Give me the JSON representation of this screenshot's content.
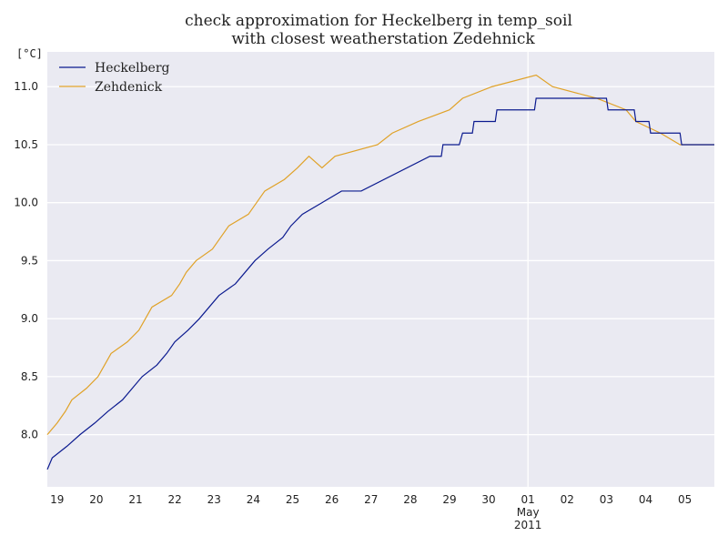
{
  "chart_data": {
    "type": "line",
    "title": [
      "check approximation for Heckelberg in temp_soil",
      "with closest weatherstation Zedehnick"
    ],
    "ylabel": "[°C]",
    "xlabel": "",
    "ylim": [
      7.55,
      11.3
    ],
    "xlim": [
      "2011-04-18 18:00",
      "2011-05-05 18:00"
    ],
    "yticks": [
      "8.0",
      "8.5",
      "9.0",
      "9.5",
      "10.0",
      "10.5",
      "11.0"
    ],
    "xticks": [
      {
        "label": "19",
        "date": "2011-04-19"
      },
      {
        "label": "20",
        "date": "2011-04-20"
      },
      {
        "label": "21",
        "date": "2011-04-21"
      },
      {
        "label": "22",
        "date": "2011-04-22"
      },
      {
        "label": "23",
        "date": "2011-04-23"
      },
      {
        "label": "24",
        "date": "2011-04-24"
      },
      {
        "label": "25",
        "date": "2011-04-25"
      },
      {
        "label": "26",
        "date": "2011-04-26"
      },
      {
        "label": "27",
        "date": "2011-04-27"
      },
      {
        "label": "28",
        "date": "2011-04-28"
      },
      {
        "label": "29",
        "date": "2011-04-29"
      },
      {
        "label": "30",
        "date": "2011-04-30"
      },
      {
        "label": "01\nMay\n2011",
        "date": "2011-05-01"
      },
      {
        "label": "02",
        "date": "2011-05-02"
      },
      {
        "label": "03",
        "date": "2011-05-03"
      },
      {
        "label": "04",
        "date": "2011-05-04"
      },
      {
        "label": "05",
        "date": "2011-05-05"
      }
    ],
    "grid": true,
    "legend_position": "top-left",
    "series": [
      {
        "name": "Heckelberg",
        "color": "#0b1a8f",
        "points": [
          [
            "2011-04-18 18:00",
            7.7
          ],
          [
            "2011-04-18 21:00",
            7.8
          ],
          [
            "2011-04-19 06:00",
            7.9
          ],
          [
            "2011-04-19 14:00",
            8.0
          ],
          [
            "2011-04-19 23:00",
            8.1
          ],
          [
            "2011-04-20 07:00",
            8.2
          ],
          [
            "2011-04-20 16:00",
            8.3
          ],
          [
            "2011-04-20 22:00",
            8.4
          ],
          [
            "2011-04-21 04:00",
            8.5
          ],
          [
            "2011-04-21 13:00",
            8.6
          ],
          [
            "2011-04-21 19:00",
            8.7
          ],
          [
            "2011-04-22 00:00",
            8.8
          ],
          [
            "2011-04-22 08:00",
            8.9
          ],
          [
            "2011-04-22 15:00",
            9.0
          ],
          [
            "2011-04-22 21:00",
            9.1
          ],
          [
            "2011-04-23 03:00",
            9.2
          ],
          [
            "2011-04-23 13:00",
            9.3
          ],
          [
            "2011-04-23 19:00",
            9.4
          ],
          [
            "2011-04-24 01:00",
            9.5
          ],
          [
            "2011-04-24 09:00",
            9.6
          ],
          [
            "2011-04-24 18:00",
            9.7
          ],
          [
            "2011-04-24 23:00",
            9.8
          ],
          [
            "2011-04-25 06:00",
            9.9
          ],
          [
            "2011-04-25 18:00",
            10.0
          ],
          [
            "2011-04-26 06:00",
            10.1
          ],
          [
            "2011-04-26 18:00",
            10.1
          ],
          [
            "2011-04-28 12:00",
            10.4
          ],
          [
            "2011-04-28 19:00",
            10.4
          ],
          [
            "2011-04-28 20:00",
            10.5
          ],
          [
            "2011-04-29 06:00",
            10.5
          ],
          [
            "2011-04-29 08:00",
            10.6
          ],
          [
            "2011-04-29 14:00",
            10.6
          ],
          [
            "2011-04-29 15:00",
            10.7
          ],
          [
            "2011-04-30 04:00",
            10.7
          ],
          [
            "2011-04-30 05:00",
            10.8
          ],
          [
            "2011-05-01 04:00",
            10.8
          ],
          [
            "2011-05-01 05:00",
            10.9
          ],
          [
            "2011-05-03 00:00",
            10.9
          ],
          [
            "2011-05-03 01:00",
            10.8
          ],
          [
            "2011-05-03 17:00",
            10.8
          ],
          [
            "2011-05-03 18:00",
            10.7
          ],
          [
            "2011-05-04 02:00",
            10.7
          ],
          [
            "2011-05-04 03:00",
            10.6
          ],
          [
            "2011-05-04 21:00",
            10.6
          ],
          [
            "2011-05-04 22:00",
            10.5
          ],
          [
            "2011-05-05 18:00",
            10.5
          ]
        ]
      },
      {
        "name": "Zehdenick",
        "color": "#e0a228",
        "points": [
          [
            "2011-04-18 18:00",
            8.0
          ],
          [
            "2011-04-19 00:00",
            8.1
          ],
          [
            "2011-04-19 05:00",
            8.2
          ],
          [
            "2011-04-19 09:00",
            8.3
          ],
          [
            "2011-04-19 18:00",
            8.4
          ],
          [
            "2011-04-20 01:00",
            8.5
          ],
          [
            "2011-04-20 05:00",
            8.6
          ],
          [
            "2011-04-20 09:00",
            8.7
          ],
          [
            "2011-04-20 19:00",
            8.8
          ],
          [
            "2011-04-21 02:00",
            8.9
          ],
          [
            "2011-04-21 06:00",
            9.0
          ],
          [
            "2011-04-21 10:00",
            9.1
          ],
          [
            "2011-04-21 22:00",
            9.2
          ],
          [
            "2011-04-22 03:00",
            9.3
          ],
          [
            "2011-04-22 07:00",
            9.4
          ],
          [
            "2011-04-22 13:00",
            9.5
          ],
          [
            "2011-04-22 23:00",
            9.6
          ],
          [
            "2011-04-23 04:00",
            9.7
          ],
          [
            "2011-04-23 09:00",
            9.8
          ],
          [
            "2011-04-23 21:00",
            9.9
          ],
          [
            "2011-04-24 02:00",
            10.0
          ],
          [
            "2011-04-24 07:00",
            10.1
          ],
          [
            "2011-04-24 19:00",
            10.2
          ],
          [
            "2011-04-25 03:00",
            10.3
          ],
          [
            "2011-04-25 10:00",
            10.4
          ],
          [
            "2011-04-25 18:00",
            10.3
          ],
          [
            "2011-04-26 02:00",
            10.4
          ],
          [
            "2011-04-27 04:00",
            10.5
          ],
          [
            "2011-04-27 13:00",
            10.6
          ],
          [
            "2011-04-28 05:00",
            10.7
          ],
          [
            "2011-04-29 00:00",
            10.8
          ],
          [
            "2011-04-29 08:00",
            10.9
          ],
          [
            "2011-04-30 02:00",
            11.0
          ],
          [
            "2011-05-01 05:00",
            11.1
          ],
          [
            "2011-05-01 15:00",
            11.0
          ],
          [
            "2011-05-02 18:00",
            10.9
          ],
          [
            "2011-05-03 12:00",
            10.8
          ],
          [
            "2011-05-03 18:00",
            10.7
          ],
          [
            "2011-05-04 09:00",
            10.6
          ],
          [
            "2011-05-04 21:00",
            10.5
          ],
          [
            "2011-05-05 18:00",
            10.5
          ]
        ]
      }
    ]
  }
}
